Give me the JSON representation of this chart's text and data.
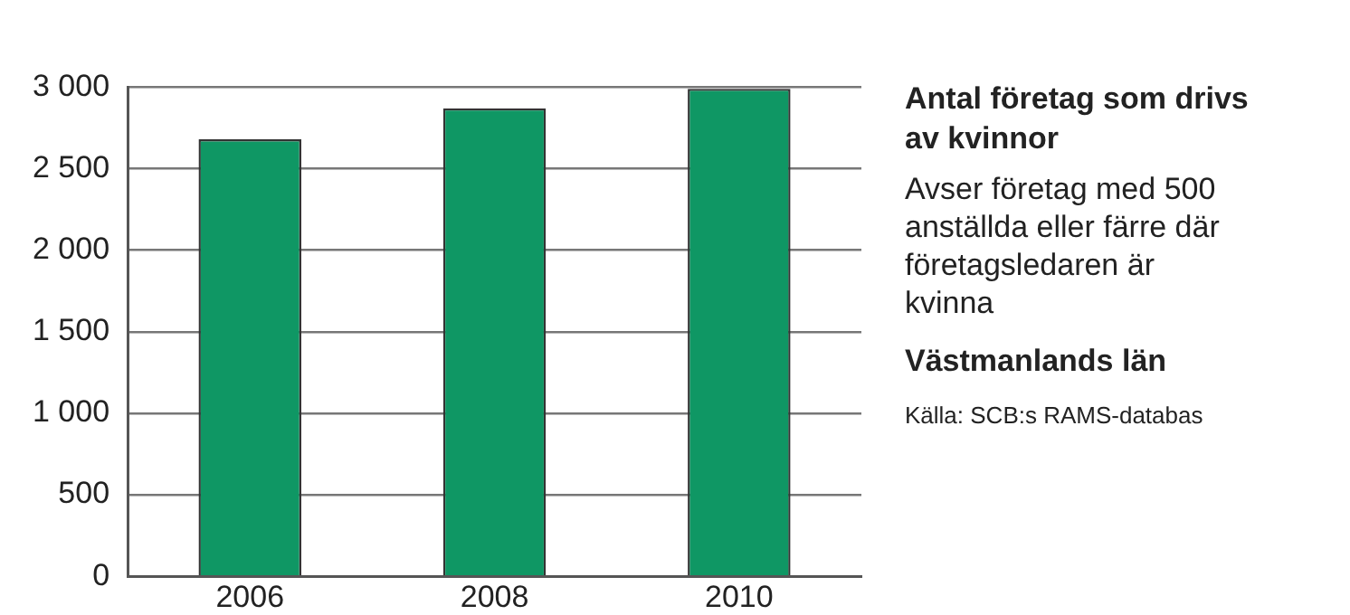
{
  "chart_data": {
    "type": "bar",
    "title": "Antal företag som drivs av kvinnor",
    "subtitle": "Avser företag med 500 anställda eller färre där företagsledaren är kvinna",
    "annotations": [
      "Västmanlands län",
      "Källa: SCB:s RAMS-databas"
    ],
    "categories": [
      "2006",
      "2008",
      "2010"
    ],
    "values": [
      2680,
      2870,
      2990
    ],
    "color": "#0f9764",
    "ylim": [
      0,
      3000
    ],
    "yticks": [
      {
        "value": 0,
        "label": "0"
      },
      {
        "value": 500,
        "label": "500"
      },
      {
        "value": 1000,
        "label": "1 000"
      },
      {
        "value": 1500,
        "label": "1 500"
      },
      {
        "value": 2000,
        "label": "2 000"
      },
      {
        "value": 2500,
        "label": "2 500"
      },
      {
        "value": 3000,
        "label": "3 000"
      }
    ],
    "grid": "y",
    "legend": false
  }
}
